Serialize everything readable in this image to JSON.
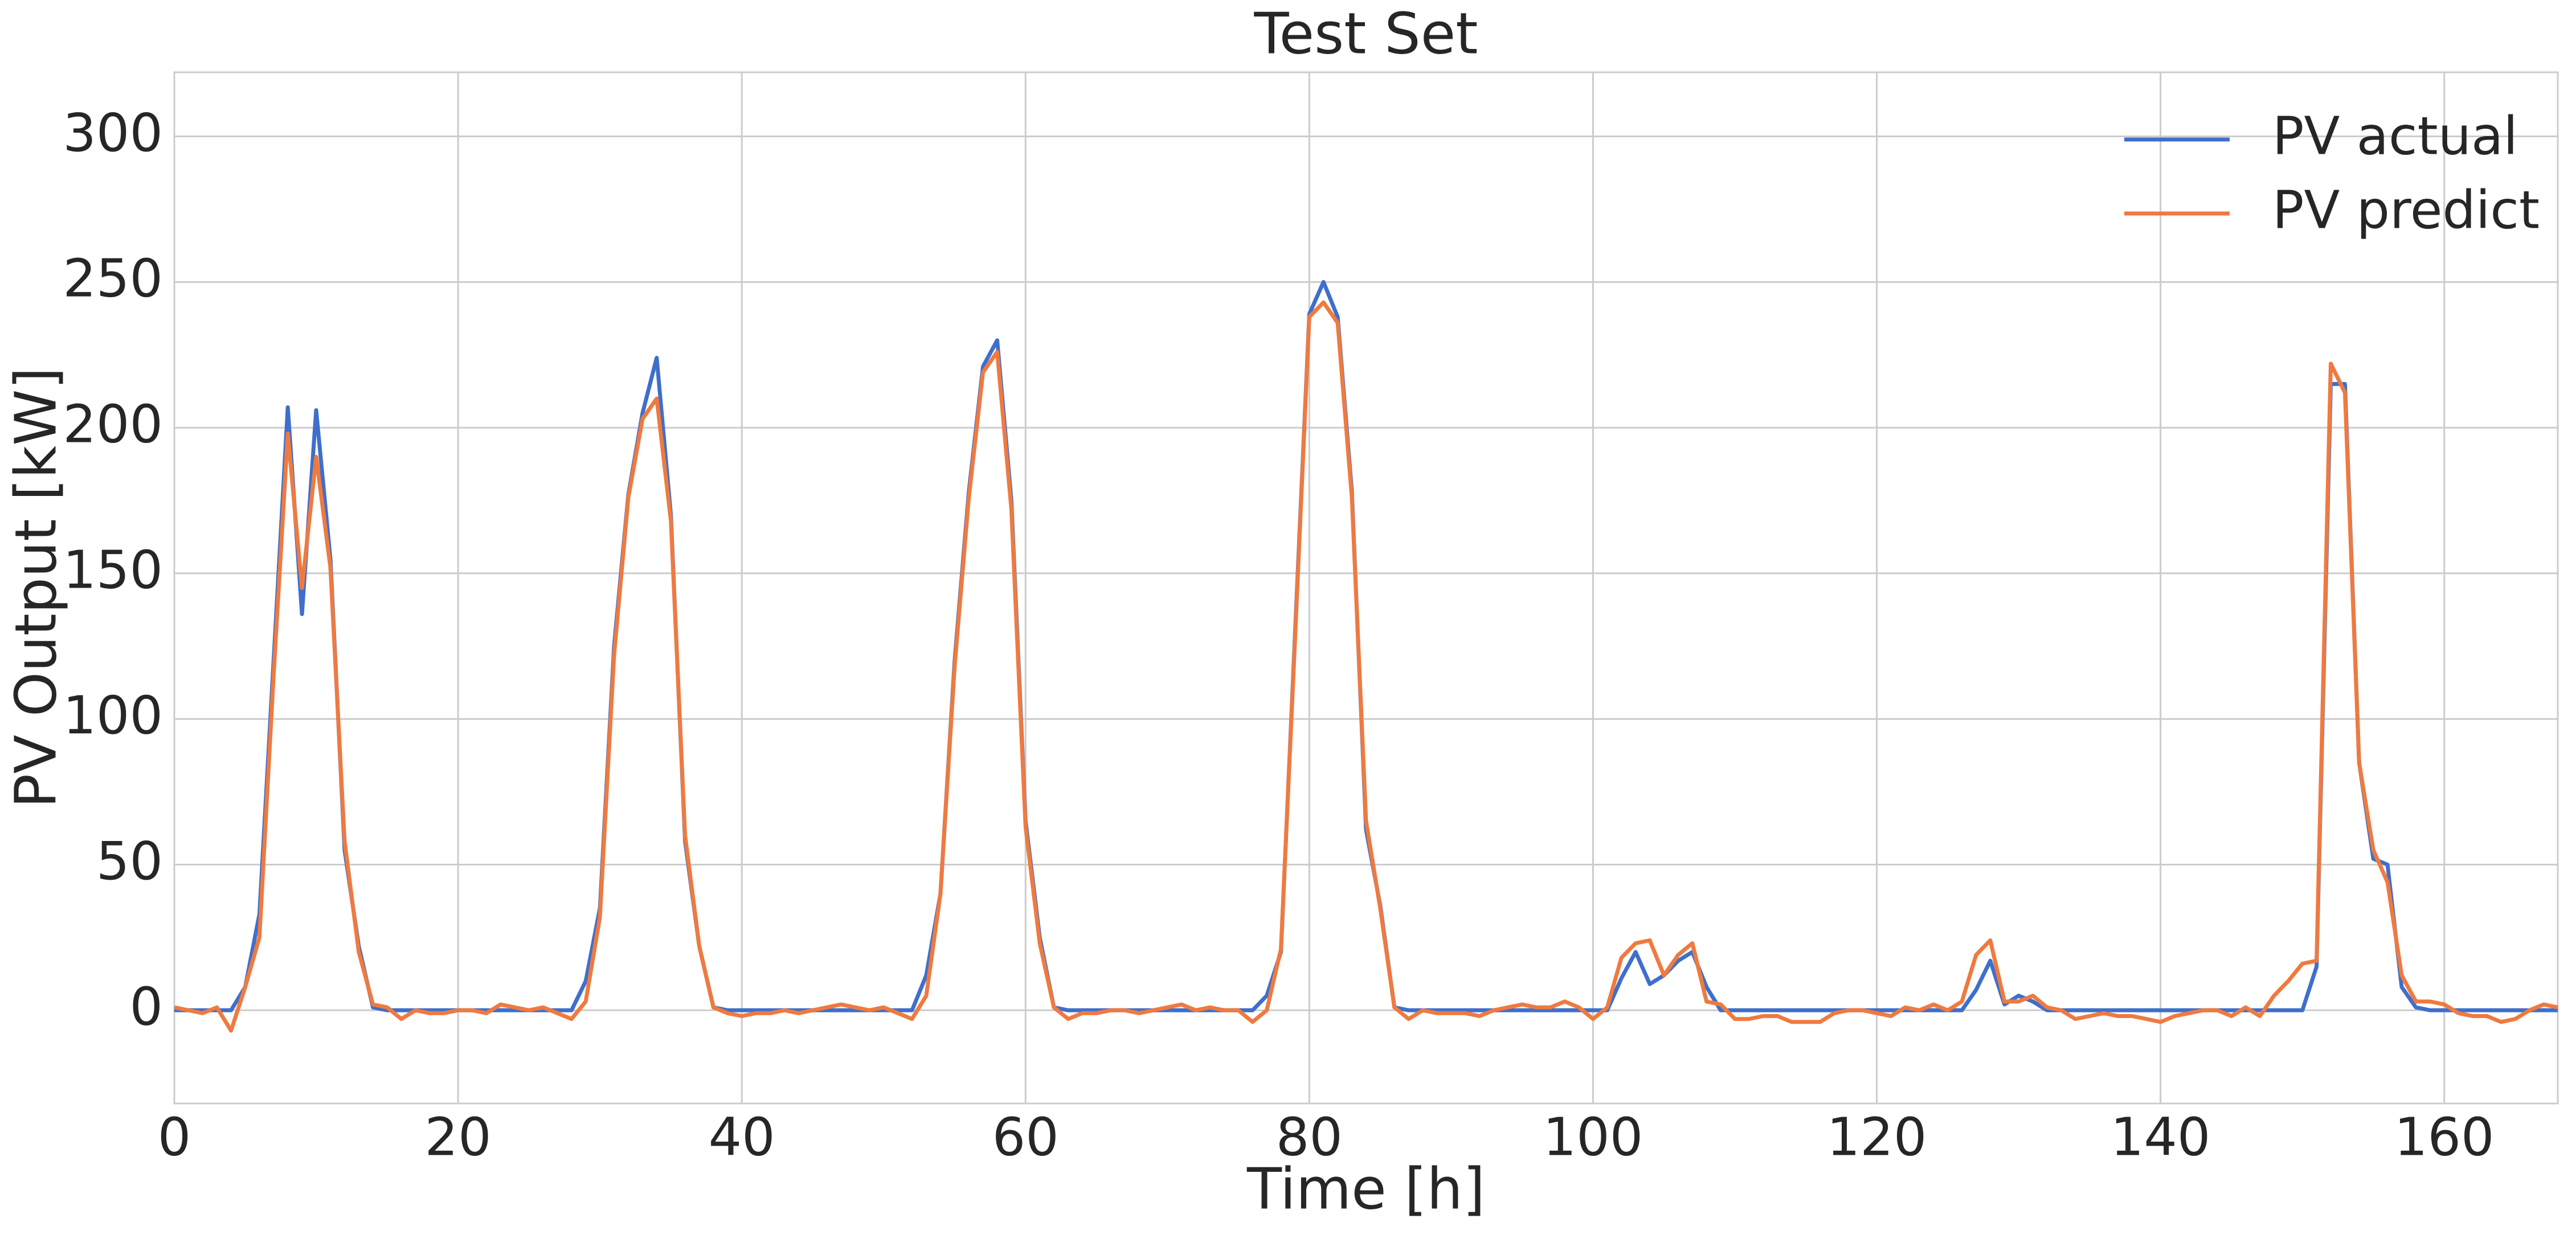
{
  "chart_data": {
    "type": "line",
    "title": "Test Set",
    "xlabel": "Time [h]",
    "ylabel": "PV Output [kW]",
    "x": [
      0,
      1,
      2,
      3,
      4,
      5,
      6,
      7,
      8,
      9,
      10,
      11,
      12,
      13,
      14,
      15,
      16,
      17,
      18,
      19,
      20,
      21,
      22,
      23,
      24,
      25,
      26,
      27,
      28,
      29,
      30,
      31,
      32,
      33,
      34,
      35,
      36,
      37,
      38,
      39,
      40,
      41,
      42,
      43,
      44,
      45,
      46,
      47,
      48,
      49,
      50,
      51,
      52,
      53,
      54,
      55,
      56,
      57,
      58,
      59,
      60,
      61,
      62,
      63,
      64,
      65,
      66,
      67,
      68,
      69,
      70,
      71,
      72,
      73,
      74,
      75,
      76,
      77,
      78,
      79,
      80,
      81,
      82,
      83,
      84,
      85,
      86,
      87,
      88,
      89,
      90,
      91,
      92,
      93,
      94,
      95,
      96,
      97,
      98,
      99,
      100,
      101,
      102,
      103,
      104,
      105,
      106,
      107,
      108,
      109,
      110,
      111,
      112,
      113,
      114,
      115,
      116,
      117,
      118,
      119,
      120,
      121,
      122,
      123,
      124,
      125,
      126,
      127,
      128,
      129,
      130,
      131,
      132,
      133,
      134,
      135,
      136,
      137,
      138,
      139,
      140,
      141,
      142,
      143,
      144,
      145,
      146,
      147,
      148,
      149,
      150,
      151,
      152,
      153,
      154,
      155,
      156,
      157,
      158,
      159,
      160,
      161,
      162,
      163,
      164,
      165,
      166,
      167,
      168
    ],
    "series": [
      {
        "name": "PV actual",
        "color": "#3f6fcc",
        "values": [
          0,
          0,
          0,
          0,
          0,
          8,
          33,
          120,
          207,
          136,
          206,
          155,
          55,
          22,
          1,
          0,
          0,
          0,
          0,
          0,
          0,
          0,
          0,
          0,
          0,
          0,
          0,
          0,
          0,
          10,
          35,
          125,
          177,
          205,
          224,
          170,
          58,
          22,
          1,
          0,
          0,
          0,
          0,
          0,
          0,
          0,
          0,
          0,
          0,
          0,
          0,
          0,
          0,
          12,
          40,
          120,
          178,
          221,
          230,
          175,
          65,
          25,
          1,
          0,
          0,
          0,
          0,
          0,
          0,
          0,
          0,
          0,
          0,
          0,
          0,
          0,
          0,
          5,
          20,
          130,
          239,
          250,
          238,
          178,
          62,
          36,
          1,
          0,
          0,
          0,
          0,
          0,
          0,
          0,
          0,
          0,
          0,
          0,
          0,
          0,
          0,
          0,
          11,
          20,
          9,
          12,
          17,
          20,
          8,
          0,
          0,
          0,
          0,
          0,
          0,
          0,
          0,
          0,
          0,
          0,
          0,
          0,
          0,
          0,
          0,
          0,
          0,
          7,
          17,
          2,
          5,
          3,
          0,
          0,
          0,
          0,
          0,
          0,
          0,
          0,
          0,
          0,
          0,
          0,
          0,
          0,
          0,
          0,
          0,
          0,
          0,
          15,
          215,
          215,
          85,
          52,
          50,
          8,
          1,
          0,
          0,
          0,
          0,
          0,
          0,
          0,
          0,
          0,
          0
        ]
      },
      {
        "name": "PV predict",
        "color": "#ef7a40",
        "values": [
          1,
          0,
          -1,
          1,
          -7,
          8,
          25,
          115,
          198,
          145,
          190,
          152,
          58,
          20,
          2,
          1,
          -3,
          0,
          -1,
          -1,
          0,
          0,
          -1,
          2,
          1,
          0,
          1,
          -1,
          -3,
          3,
          32,
          122,
          176,
          203,
          210,
          168,
          60,
          22,
          1,
          -1,
          -2,
          -1,
          -1,
          0,
          -1,
          0,
          1,
          2,
          1,
          0,
          1,
          -1,
          -3,
          5,
          40,
          118,
          176,
          219,
          226,
          172,
          63,
          23,
          1,
          -3,
          -1,
          -1,
          0,
          0,
          -1,
          0,
          1,
          2,
          0,
          1,
          0,
          0,
          -4,
          0,
          21,
          128,
          238,
          243,
          236,
          176,
          65,
          35,
          1,
          -3,
          0,
          -1,
          -1,
          -1,
          -2,
          0,
          1,
          2,
          1,
          1,
          3,
          1,
          -3,
          1,
          18,
          23,
          24,
          12,
          19,
          23,
          3,
          2,
          -3,
          -3,
          -2,
          -2,
          -4,
          -4,
          -4,
          -1,
          0,
          0,
          -1,
          -2,
          1,
          0,
          2,
          0,
          3,
          19,
          24,
          3,
          3,
          5,
          1,
          0,
          -3,
          -2,
          -1,
          -2,
          -2,
          -3,
          -4,
          -2,
          -1,
          0,
          0,
          -2,
          1,
          -2,
          5,
          10,
          16,
          17,
          222,
          212,
          85,
          55,
          44,
          12,
          3,
          3,
          2,
          -1,
          -2,
          -2,
          -4,
          -3,
          0,
          2,
          1
        ]
      }
    ],
    "xlim": [
      0,
      168
    ],
    "ylim": [
      -32,
      322
    ],
    "xticks": [
      0,
      20,
      40,
      60,
      80,
      100,
      120,
      140,
      160
    ],
    "yticks": [
      0,
      50,
      100,
      150,
      200,
      250,
      300
    ],
    "grid": true,
    "legend": "upper right"
  }
}
